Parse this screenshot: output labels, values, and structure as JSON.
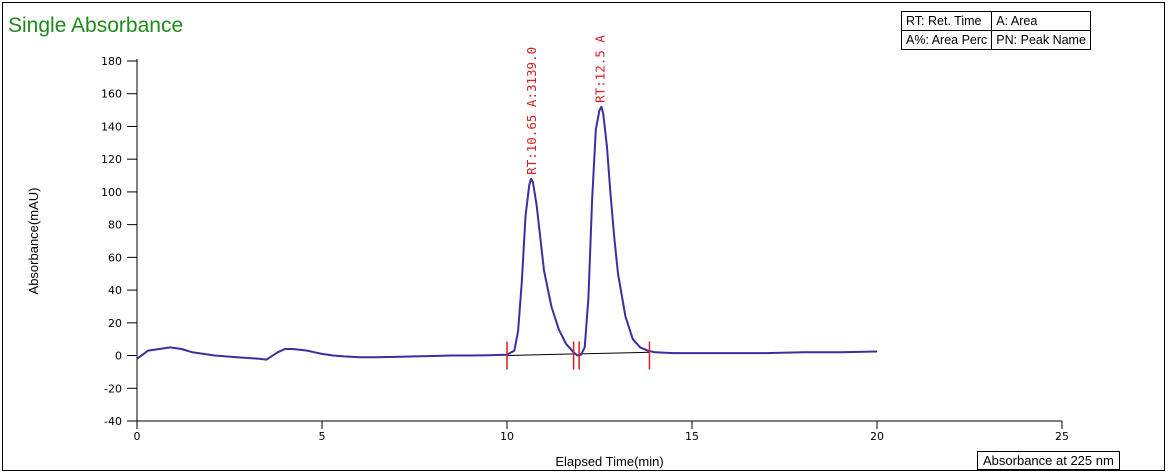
{
  "chart_data": {
    "type": "line",
    "title": "Single Absorbance",
    "xlabel": "Elapsed Time(min)",
    "ylabel": "Absorbance(mAU)",
    "xlim": [
      0,
      25
    ],
    "ylim": [
      -40,
      180
    ],
    "x_ticks": [
      0,
      5,
      10,
      15,
      20,
      25
    ],
    "y_ticks": [
      -40,
      -20,
      0,
      20,
      40,
      60,
      80,
      100,
      120,
      140,
      160,
      180
    ],
    "grid": false,
    "series": [
      {
        "color": "#3a2fa0",
        "x": [
          0,
          0.3,
          0.6,
          0.9,
          1.2,
          1.5,
          1.8,
          2.1,
          2.4,
          2.7,
          3.0,
          3.3,
          3.5,
          3.6,
          3.8,
          4.0,
          4.2,
          4.4,
          4.6,
          4.8,
          5.0,
          5.3,
          5.6,
          6.0,
          6.5,
          7.0,
          7.5,
          8.0,
          8.5,
          9.0,
          9.5,
          10.0,
          10.2,
          10.3,
          10.4,
          10.5,
          10.6,
          10.65,
          10.7,
          10.8,
          10.9,
          11.0,
          11.2,
          11.4,
          11.6,
          11.8,
          11.9,
          12.0,
          12.1,
          12.2,
          12.3,
          12.4,
          12.5,
          12.55,
          12.6,
          12.7,
          12.8,
          12.9,
          13.0,
          13.2,
          13.4,
          13.6,
          13.8,
          14.0,
          14.5,
          15.0,
          16.0,
          17.0,
          18.0,
          19.0,
          20.0
        ],
        "y": [
          -2,
          3,
          4,
          5,
          4,
          2,
          1,
          0,
          -0.5,
          -1,
          -1.5,
          -2,
          -2.5,
          -1,
          2,
          4,
          4,
          3.5,
          3,
          2,
          1,
          0,
          -0.5,
          -1,
          -1,
          -0.8,
          -0.5,
          -0.3,
          0,
          0,
          0.2,
          0.5,
          3,
          15,
          45,
          85,
          104,
          108,
          106,
          92,
          72,
          52,
          30,
          16,
          7,
          2,
          0,
          0.5,
          5,
          35,
          95,
          138,
          150,
          152,
          148,
          128,
          98,
          72,
          50,
          24,
          10,
          5,
          3,
          2,
          1.5,
          1.5,
          1.5,
          1.5,
          2,
          2,
          2.5
        ]
      }
    ],
    "baseline_segments": [
      [
        10.0,
        0,
        11.85,
        1
      ],
      [
        11.95,
        1,
        13.85,
        2
      ]
    ],
    "integration_markers": [
      10.0,
      11.8,
      11.95,
      13.85
    ],
    "peak_annotations": [
      {
        "x": 10.65,
        "text": "RT:10.65  A:3139.0"
      },
      {
        "x": 12.5,
        "text": "RT:12.5  A"
      }
    ]
  },
  "legend": {
    "rt": "RT: Ret. Time",
    "area": "A: Area",
    "area_perc": "A%: Area Perc",
    "peak_name": "PN: Peak Name"
  },
  "detector_label": "Absorbance at 225 nm",
  "colors": {
    "title": "#1d8a1d",
    "trace": "#3a2fa0",
    "annotation": "#d42020"
  }
}
